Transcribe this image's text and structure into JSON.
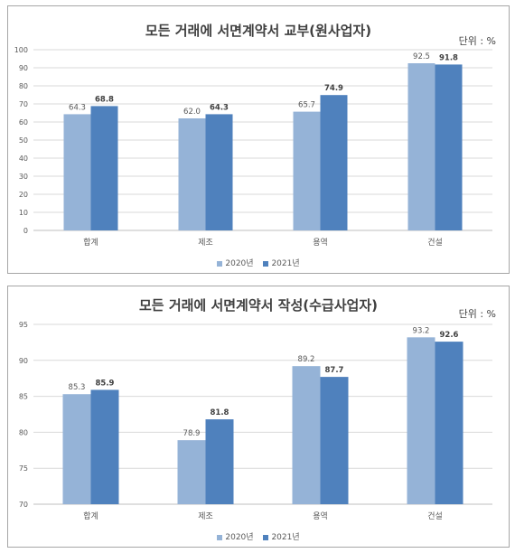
{
  "chart_data": [
    {
      "type": "bar",
      "title": "모든 거래에 서면계약서 교부(원사업자)",
      "unit": "단위 : %",
      "categories": [
        "합계",
        "제조",
        "용역",
        "건설"
      ],
      "series": [
        {
          "name": "2020년",
          "values": [
            64.3,
            62.0,
            65.7,
            92.5
          ],
          "color": "#95b3d7",
          "labels": [
            "64.3",
            "62.0",
            "65.7",
            "92.5"
          ]
        },
        {
          "name": "2021년",
          "values": [
            68.8,
            64.3,
            74.9,
            91.8
          ],
          "color": "#4f81bd",
          "labels": [
            "68.8",
            "64.3",
            "74.9",
            "91.8"
          ]
        }
      ],
      "ylim": [
        0,
        100
      ],
      "yticks": [
        "0",
        "10",
        "20",
        "30",
        "40",
        "50",
        "60",
        "70",
        "80",
        "90",
        "100"
      ],
      "grid": true,
      "legend": "bottom"
    },
    {
      "type": "bar",
      "title": "모든 거래에 서면계약서 작성(수급사업자)",
      "unit": "단위 : %",
      "categories": [
        "합계",
        "제조",
        "용역",
        "건설"
      ],
      "series": [
        {
          "name": "2020년",
          "values": [
            85.3,
            78.9,
            89.2,
            93.2
          ],
          "color": "#95b3d7",
          "labels": [
            "85.3",
            "78.9",
            "89.2",
            "93.2"
          ]
        },
        {
          "name": "2021년",
          "values": [
            85.9,
            81.8,
            87.7,
            92.6
          ],
          "color": "#4f81bd",
          "labels": [
            "85.9",
            "81.8",
            "87.7",
            "92.6"
          ]
        }
      ],
      "ylim": [
        70,
        95
      ],
      "yticks": [
        "70",
        "75",
        "80",
        "85",
        "90",
        "95"
      ],
      "grid": true,
      "legend": "bottom"
    }
  ]
}
